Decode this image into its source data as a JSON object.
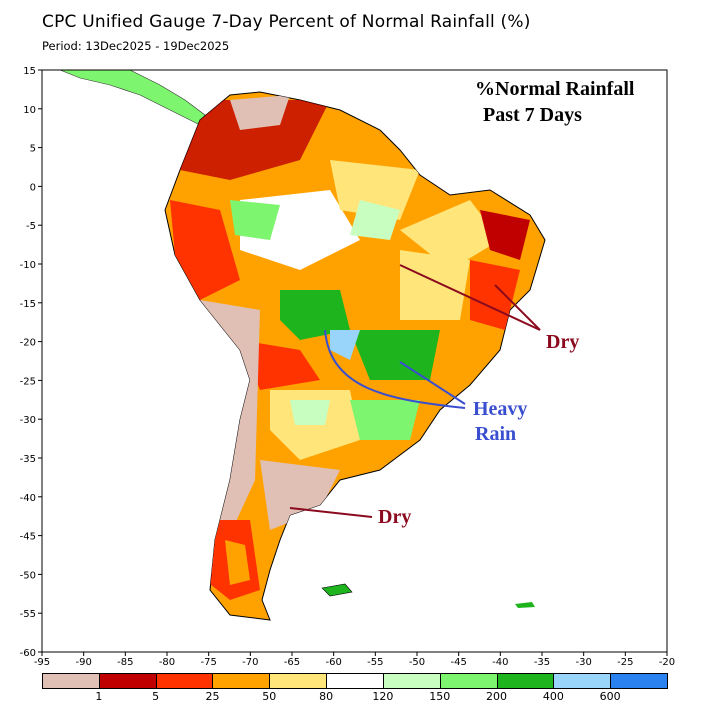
{
  "title": "CPC Unified Gauge 7-Day Percent of Normal Rainfall (%)",
  "period": "Period: 13Dec2025 - 19Dec2025",
  "map": {
    "lat_ticks": [
      "15",
      "10",
      "5",
      "0",
      "-5",
      "-10",
      "-15",
      "-20",
      "-25",
      "-30",
      "-35",
      "-40",
      "-45",
      "-50",
      "-55",
      "-60"
    ],
    "lon_ticks": [
      "-95",
      "-90",
      "-85",
      "-80",
      "-75",
      "-70",
      "-65",
      "-60",
      "-55",
      "-50",
      "-45",
      "-40",
      "-35",
      "-30",
      "-25",
      "-20"
    ],
    "annotations": {
      "heading1": "%Normal Rainfall",
      "heading2": "Past 7 Days",
      "dry_ne": "Dry",
      "heavy1": "Heavy",
      "heavy2": "Rain",
      "dry_s": "Dry"
    }
  },
  "colorbar": {
    "colors": [
      "#e0bfb5",
      "#c00000",
      "#ff3300",
      "#ffa200",
      "#ffe57a",
      "#ffffff",
      "#c8ffc0",
      "#7ef56e",
      "#1eb41e",
      "#99d4fa",
      "#2a82f0"
    ],
    "labels": [
      "1",
      "5",
      "25",
      "50",
      "80",
      "120",
      "150",
      "200",
      "400",
      "600"
    ]
  }
}
